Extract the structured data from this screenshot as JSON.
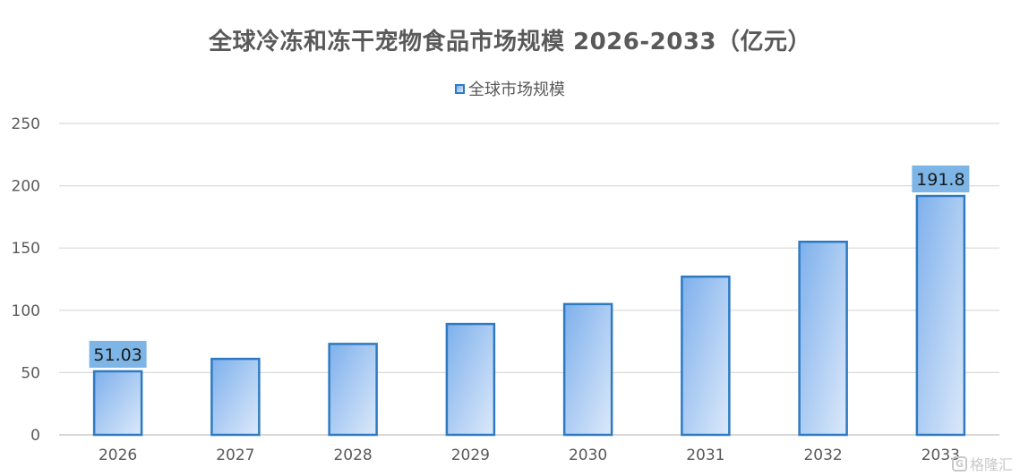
{
  "chart_data": {
    "type": "bar",
    "title": "全球冷冻和冻干宠物食品市场规模 2026-2033（亿元）",
    "categories": [
      "2026",
      "2027",
      "2028",
      "2029",
      "2030",
      "2031",
      "2032",
      "2033"
    ],
    "series": [
      {
        "name": "全球市场规模",
        "values": [
          51.03,
          61,
          73,
          89,
          105,
          127,
          155,
          191.8
        ]
      }
    ],
    "data_labels": [
      {
        "category": "2026",
        "text": "51.03"
      },
      {
        "category": "2033",
        "text": "191.8"
      }
    ],
    "xlabel": "",
    "ylabel": "",
    "ylim": [
      0,
      250
    ],
    "yticks": [
      "0",
      "50",
      "100",
      "150",
      "200",
      "250"
    ],
    "grid": true,
    "legend_position": "top",
    "colors": {
      "bar_border": "#2e7ac2",
      "bar_fill_top": "#7eb0ec",
      "bar_fill_bottom": "#dce9fa",
      "label_background": "#7cb5e6",
      "gridline": "#d9d9d9",
      "axis_text": "#595959"
    }
  },
  "watermark": {
    "icon": "brand-logo-icon",
    "logo_letter": "G",
    "text": "格隆汇"
  }
}
